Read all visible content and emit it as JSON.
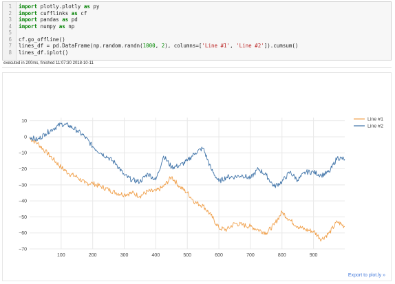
{
  "code_cell": {
    "lines": [
      {
        "n": "1",
        "parts": [
          {
            "t": "import",
            "c": "kw"
          },
          {
            "t": " plotly.plotly ",
            "c": ""
          },
          {
            "t": "as",
            "c": "kw"
          },
          {
            "t": " py",
            "c": ""
          }
        ]
      },
      {
        "n": "2",
        "parts": [
          {
            "t": "import",
            "c": "kw"
          },
          {
            "t": " cufflinks ",
            "c": ""
          },
          {
            "t": "as",
            "c": "kw"
          },
          {
            "t": " cf",
            "c": ""
          }
        ]
      },
      {
        "n": "3",
        "parts": [
          {
            "t": "import",
            "c": "kw"
          },
          {
            "t": " pandas ",
            "c": ""
          },
          {
            "t": "as",
            "c": "kw"
          },
          {
            "t": " pd",
            "c": ""
          }
        ]
      },
      {
        "n": "4",
        "parts": [
          {
            "t": "import",
            "c": "kw"
          },
          {
            "t": " numpy ",
            "c": ""
          },
          {
            "t": "as",
            "c": "kw"
          },
          {
            "t": " np",
            "c": ""
          }
        ]
      },
      {
        "n": "5",
        "parts": [
          {
            "t": "",
            "c": ""
          }
        ]
      },
      {
        "n": "6",
        "parts": [
          {
            "t": "cf.go_offline()",
            "c": ""
          }
        ]
      },
      {
        "n": "7",
        "parts": [
          {
            "t": "lines_df = pd.DataFrame(np.random.randn(",
            "c": ""
          },
          {
            "t": "1000",
            "c": "num"
          },
          {
            "t": ", ",
            "c": ""
          },
          {
            "t": "2",
            "c": "num"
          },
          {
            "t": "), columns=[",
            "c": ""
          },
          {
            "t": "'Line #1'",
            "c": "str"
          },
          {
            "t": ", ",
            "c": ""
          },
          {
            "t": "'Line #2'",
            "c": "str"
          },
          {
            "t": "]).cumsum()",
            "c": ""
          }
        ]
      },
      {
        "n": "8",
        "parts": [
          {
            "t": "lines_df.iplot()",
            "c": ""
          }
        ]
      }
    ]
  },
  "exec_note": "executed in 200ms, finished 11:07:30 2018-10-11",
  "export_link": "Export to plot.ly »",
  "colors": {
    "line1": "#f0a04b",
    "line2": "#3f73a8",
    "grid": "#e8e8e8",
    "link": "#447adb"
  },
  "chart_data": {
    "type": "line",
    "title": "",
    "xlabel": "",
    "ylabel": "",
    "xlim": [
      0,
      999
    ],
    "ylim": [
      -70,
      12
    ],
    "x_ticks": [
      100,
      200,
      300,
      400,
      500,
      600,
      700,
      800,
      900
    ],
    "y_ticks": [
      10,
      0,
      -10,
      -20,
      -30,
      -40,
      -50,
      -60,
      -70
    ],
    "grid": true,
    "legend_position": "top-right",
    "series": [
      {
        "name": "Line #1",
        "color": "#f0a04b",
        "x": [
          0,
          25,
          50,
          75,
          100,
          125,
          150,
          175,
          200,
          225,
          250,
          275,
          300,
          325,
          350,
          375,
          400,
          425,
          450,
          475,
          500,
          525,
          550,
          575,
          600,
          625,
          650,
          675,
          700,
          725,
          750,
          775,
          800,
          825,
          850,
          875,
          900,
          925,
          950,
          975,
          999
        ],
        "y": [
          -1,
          -4,
          -9,
          -14,
          -19,
          -23,
          -25,
          -29,
          -29,
          -31,
          -33,
          -35,
          -36,
          -35,
          -37,
          -34,
          -34,
          -31,
          -25,
          -31,
          -35,
          -41,
          -43,
          -49,
          -57,
          -58,
          -54,
          -55,
          -56,
          -58,
          -60,
          -55,
          -47,
          -52,
          -56,
          -58,
          -59,
          -64,
          -60,
          -53,
          -56
        ]
      },
      {
        "name": "Line #2",
        "color": "#3f73a8",
        "x": [
          0,
          25,
          50,
          75,
          100,
          125,
          150,
          175,
          200,
          225,
          250,
          275,
          300,
          325,
          350,
          375,
          400,
          425,
          450,
          475,
          500,
          525,
          550,
          575,
          600,
          625,
          650,
          675,
          700,
          725,
          750,
          775,
          800,
          825,
          850,
          875,
          900,
          925,
          950,
          975,
          999
        ],
        "y": [
          0,
          -2,
          2,
          5,
          8,
          7,
          4,
          0,
          -6,
          -10,
          -13,
          -17,
          -24,
          -27,
          -28,
          -23,
          -27,
          -12,
          -19,
          -18,
          -15,
          -10,
          -7,
          -20,
          -28,
          -25,
          -25,
          -24,
          -26,
          -20,
          -24,
          -31,
          -28,
          -22,
          -27,
          -22,
          -22,
          -24,
          -22,
          -13,
          -14
        ]
      }
    ]
  }
}
